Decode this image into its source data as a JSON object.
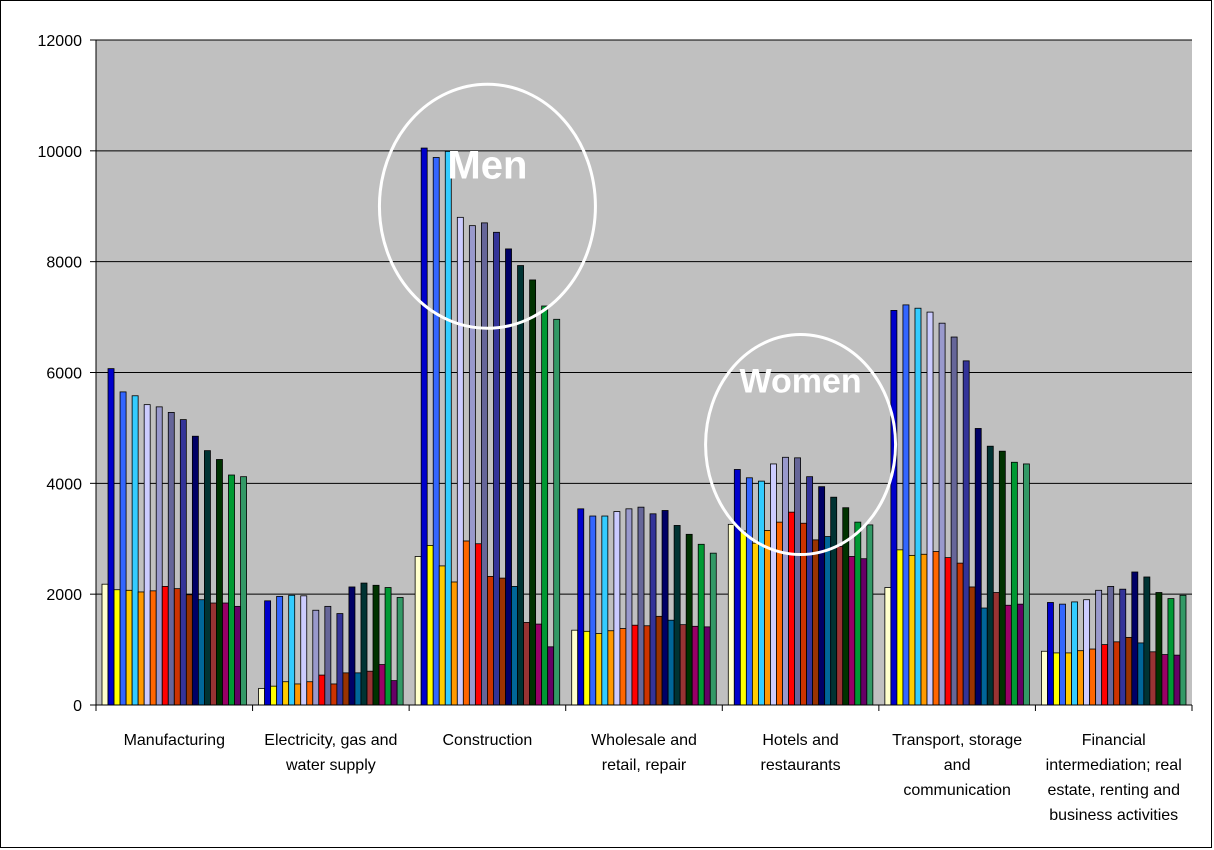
{
  "chart_data": {
    "type": "bar",
    "title": "",
    "xlabel": "",
    "ylabel": "",
    "ylim": [
      0,
      12000
    ],
    "y_ticks": [
      "0",
      "2000",
      "4000",
      "6000",
      "8000",
      "10000",
      "12000"
    ],
    "grid": true,
    "plot_background": "#c0c0c0",
    "categories": [
      {
        "lines": [
          "Manufacturing"
        ]
      },
      {
        "lines": [
          "Electricity, gas and",
          "water supply"
        ]
      },
      {
        "lines": [
          "Construction"
        ]
      },
      {
        "lines": [
          "Wholesale and",
          "retail, repair"
        ]
      },
      {
        "lines": [
          "Hotels and",
          "restaurants"
        ]
      },
      {
        "lines": [
          "Transport, storage",
          "and",
          "communication"
        ]
      },
      {
        "lines": [
          "Financial",
          "intermediation; real",
          "estate, renting and",
          "business activities"
        ]
      }
    ],
    "series_colors": [
      "#ffffcc",
      "#0000cc",
      "#ffff00",
      "#3366ff",
      "#ffcc00",
      "#33ccff",
      "#ff9900",
      "#ccccff",
      "#ff6600",
      "#9999cc",
      "#ff0000",
      "#666699",
      "#cc3300",
      "#333399",
      "#993300",
      "#000066",
      "#006699",
      "#003333",
      "#993333",
      "#003300",
      "#990066",
      "#009933",
      "#660066",
      "#339966"
    ],
    "series": [
      {
        "values": [
          2180,
          300,
          2680,
          1350,
          3260,
          2120,
          970
        ]
      },
      {
        "values": [
          6070,
          1880,
          10050,
          3540,
          4250,
          7120,
          1850
        ]
      },
      {
        "values": [
          2080,
          340,
          2880,
          1330,
          3140,
          2800,
          940
        ]
      },
      {
        "values": [
          5650,
          1960,
          9880,
          3410,
          4100,
          7220,
          1820
        ]
      },
      {
        "values": [
          2070,
          420,
          2510,
          1290,
          2920,
          2700,
          940
        ]
      },
      {
        "values": [
          5580,
          1980,
          9990,
          3410,
          4040,
          7160,
          1860
        ]
      },
      {
        "values": [
          2040,
          380,
          2220,
          1340,
          3150,
          2720,
          980
        ]
      },
      {
        "values": [
          5420,
          1970,
          8800,
          3490,
          4350,
          7090,
          1900
        ]
      },
      {
        "values": [
          2060,
          420,
          2960,
          1380,
          3300,
          2770,
          1010
        ]
      },
      {
        "values": [
          5380,
          1710,
          8650,
          3540,
          4470,
          6890,
          2070
        ]
      },
      {
        "values": [
          2140,
          540,
          2910,
          1440,
          3480,
          2660,
          1090
        ]
      },
      {
        "values": [
          5280,
          1780,
          8700,
          3570,
          4460,
          6640,
          2140
        ]
      },
      {
        "values": [
          2100,
          380,
          2320,
          1430,
          3280,
          2560,
          1140
        ]
      },
      {
        "values": [
          5150,
          1650,
          8530,
          3450,
          4120,
          6210,
          2090
        ]
      },
      {
        "values": [
          1990,
          580,
          2290,
          1600,
          2980,
          2130,
          1220
        ]
      },
      {
        "values": [
          4850,
          2130,
          8230,
          3510,
          3940,
          4990,
          2400
        ]
      },
      {
        "values": [
          1900,
          580,
          2140,
          1530,
          3040,
          1750,
          1120
        ]
      },
      {
        "values": [
          4590,
          2200,
          7930,
          3240,
          3750,
          4670,
          2310
        ]
      },
      {
        "values": [
          1840,
          610,
          1490,
          1450,
          2860,
          2030,
          960
        ]
      },
      {
        "values": [
          4430,
          2160,
          7670,
          3080,
          3560,
          4580,
          2030
        ]
      },
      {
        "values": [
          1840,
          730,
          1460,
          1420,
          2680,
          1800,
          910
        ]
      },
      {
        "values": [
          4150,
          2120,
          7200,
          2900,
          3300,
          4380,
          1920
        ]
      },
      {
        "values": [
          1780,
          440,
          1050,
          1410,
          2640,
          1820,
          900
        ]
      },
      {
        "values": [
          4120,
          1940,
          6960,
          2740,
          3250,
          4350,
          1980
        ]
      }
    ],
    "annotations": [
      {
        "text": "Men",
        "category_index": 2,
        "y_center": 9000,
        "x_offset_groups": 0.5
      },
      {
        "text": "Women",
        "category_index": 4,
        "y_center": 4700,
        "x_offset_groups": 0.5
      }
    ]
  }
}
